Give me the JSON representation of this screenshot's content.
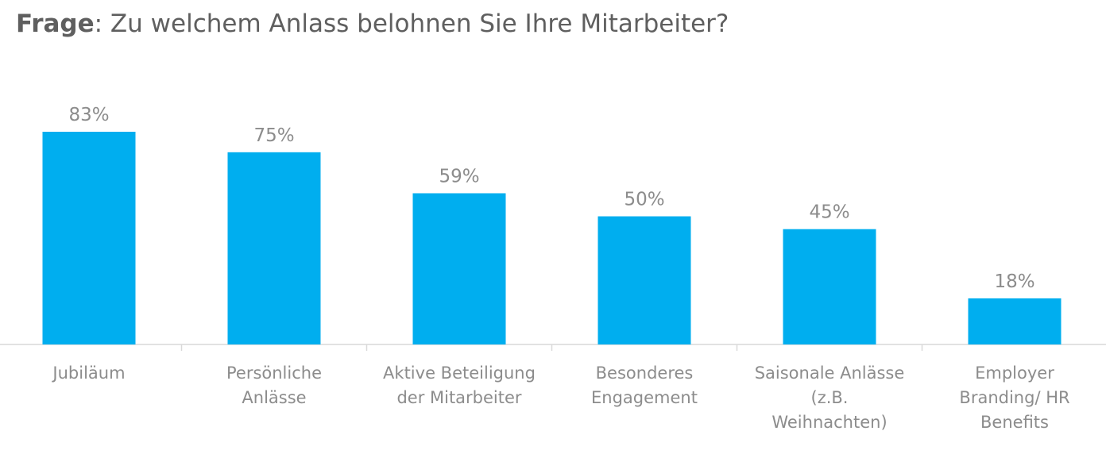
{
  "header": {
    "title_bold": "Frage",
    "title_rest": ": Zu welchem Anlass belohnen Sie Ihre Mitarbeiter?"
  },
  "chart_data": {
    "type": "bar",
    "categories": [
      [
        "Jubiläum"
      ],
      [
        "Persönliche",
        "Anlässe"
      ],
      [
        "Aktive Beteiligung",
        "der Mitarbeiter"
      ],
      [
        "Besonderes",
        "Engagement"
      ],
      [
        "Saisonale Anlässe",
        "(z.B.",
        "Weihnachten)"
      ],
      [
        "Employer",
        "Branding/ HR",
        "Benefits"
      ]
    ],
    "values": [
      83,
      75,
      59,
      50,
      45,
      18
    ],
    "value_labels": [
      "83%",
      "75%",
      "59%",
      "50%",
      "45%",
      "18%"
    ],
    "unit": "%",
    "ylim": [
      0,
      100
    ],
    "grid": false,
    "legend": false,
    "colors": {
      "bar": "#00aeef",
      "text": "#8c8c8c",
      "axis": "#d9d9d9",
      "title": "#5f5f5f"
    }
  }
}
